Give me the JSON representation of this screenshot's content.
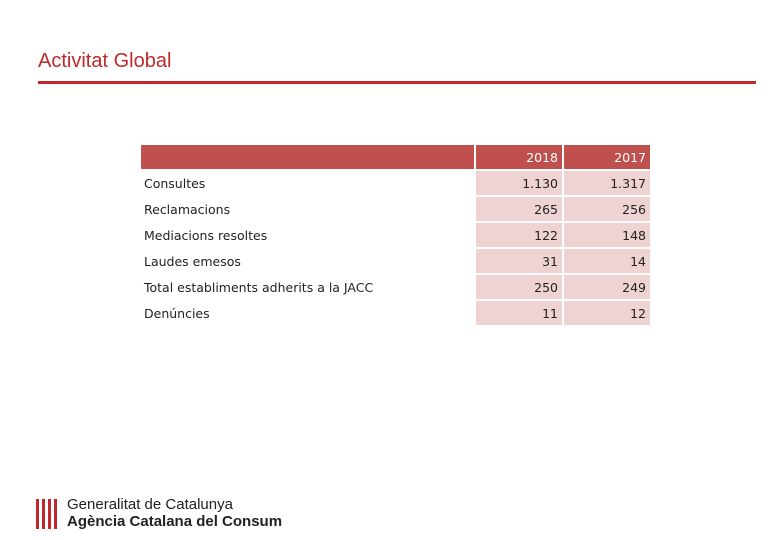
{
  "slide": {
    "title": "Activitat Global"
  },
  "table": {
    "headers": [
      "",
      "2018",
      "2017"
    ],
    "rows": [
      {
        "label": "Consultes",
        "y2018": "1.130",
        "y2017": "1.317"
      },
      {
        "label": "Reclamacions",
        "y2018": "265",
        "y2017": "256"
      },
      {
        "label": "Mediacions resoltes",
        "y2018": "122",
        "y2017": "148"
      },
      {
        "label": "Laudes emesos",
        "y2018": "31",
        "y2017": "14"
      },
      {
        "label": "Total establiments adherits a la JACC",
        "y2018": "250",
        "y2017": "249"
      },
      {
        "label": "Denúncies",
        "y2018": "11",
        "y2017": "12"
      }
    ]
  },
  "footer": {
    "org_line1": "Generalitat de Catalunya",
    "org_line2": "Agència Catalana del Consum"
  },
  "colors": {
    "accent": "#c0282c",
    "header_fill": "#c0504d",
    "cell_fill": "#efd3d2"
  }
}
